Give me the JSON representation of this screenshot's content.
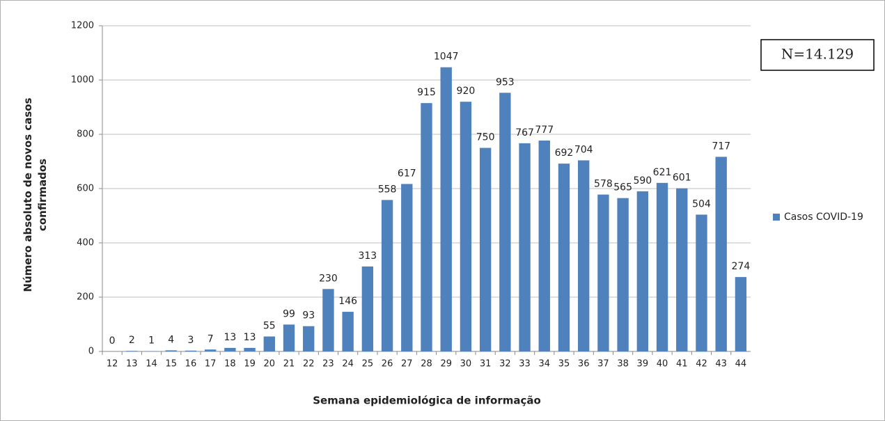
{
  "chart_data": {
    "type": "bar",
    "annotation": "N=14.129",
    "x_label": "Semana epidemiológica de informação",
    "y_label": "Número absoluto de novos casos confirmados",
    "categories": [
      "12",
      "13",
      "14",
      "15",
      "16",
      "17",
      "18",
      "19",
      "20",
      "21",
      "22",
      "23",
      "24",
      "25",
      "26",
      "27",
      "28",
      "29",
      "30",
      "31",
      "32",
      "33",
      "34",
      "35",
      "36",
      "37",
      "38",
      "39",
      "40",
      "41",
      "42",
      "43",
      "44"
    ],
    "series": [
      {
        "name": "Casos COVID-19",
        "color": "#4f81bd",
        "values": [
          0,
          2,
          1,
          4,
          3,
          7,
          13,
          13,
          55,
          99,
          93,
          230,
          146,
          313,
          558,
          617,
          915,
          1047,
          920,
          750,
          953,
          767,
          777,
          692,
          704,
          578,
          565,
          590,
          621,
          601,
          504,
          717,
          274
        ]
      }
    ],
    "ylim": [
      0,
      1200
    ],
    "yticks": [
      0,
      200,
      400,
      600,
      800,
      1000,
      1200
    ],
    "grid": true,
    "legend": "right"
  }
}
